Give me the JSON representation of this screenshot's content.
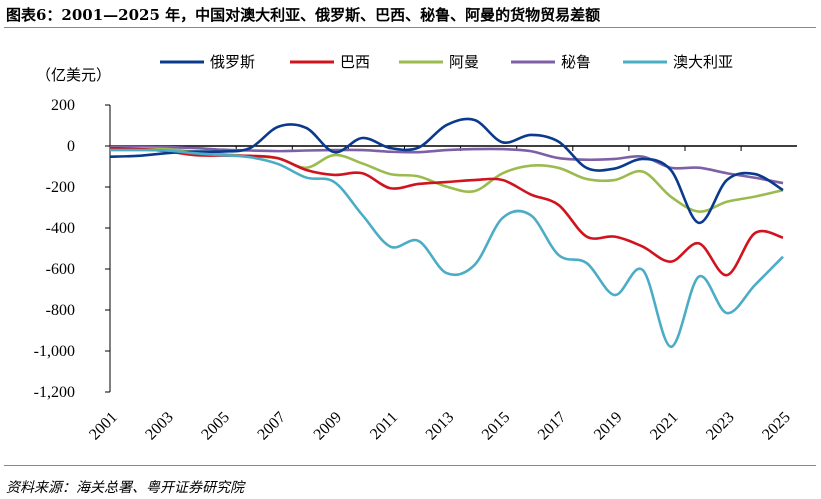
{
  "title": "图表6：2001—2025 年，中国对澳大利亚、俄罗斯、巴西、秘鲁、阿曼的货物贸易差额",
  "source": "资料来源：海关总署、粤开证券研究院",
  "chart_data": {
    "type": "line",
    "title": "图表6：2001—2025 年，中国对澳大利亚、俄罗斯、巴西、秘鲁、阿曼的货物贸易差额",
    "ylabel": "（亿美元）",
    "xlabel": "",
    "ylim": [
      -1200,
      200
    ],
    "yticks": [
      "200",
      "0",
      "-200",
      "-400",
      "-600",
      "-800",
      "-1,000",
      "-1,200"
    ],
    "xtick_labels": [
      "2001",
      "2003",
      "2005",
      "2007",
      "2009",
      "2011",
      "2013",
      "2015",
      "2017",
      "2019",
      "2021",
      "2023",
      "2025"
    ],
    "legend_position": "top",
    "grid": false,
    "x": [
      2001,
      2002,
      2003,
      2004,
      2005,
      2006,
      2007,
      2008,
      2009,
      2010,
      2011,
      2012,
      2013,
      2014,
      2015,
      2016,
      2017,
      2018,
      2019,
      2020,
      2021,
      2022,
      2023,
      2024,
      2025
    ],
    "series": [
      {
        "name": "俄罗斯",
        "color": "#0b3a8c",
        "values": [
          -52,
          -48,
          -35,
          -27,
          -27,
          -10,
          94,
          88,
          -30,
          39,
          -10,
          -8,
          102,
          127,
          18,
          54,
          21,
          -107,
          -110,
          -63,
          -117,
          -375,
          -166,
          -137,
          -215
        ]
      },
      {
        "name": "巴西",
        "color": "#d0131e",
        "values": [
          -10,
          -15,
          -25,
          -44,
          -47,
          -48,
          -60,
          -117,
          -141,
          -133,
          -206,
          -185,
          -176,
          -166,
          -166,
          -236,
          -288,
          -442,
          -442,
          -491,
          -564,
          -475,
          -630,
          -425,
          -447
        ]
      },
      {
        "name": "阿曼",
        "color": "#9bbb4f",
        "values": [
          -10,
          -12,
          -15,
          -28,
          -40,
          -50,
          -60,
          -106,
          -44,
          -85,
          -137,
          -148,
          -198,
          -220,
          -133,
          -96,
          -107,
          -161,
          -166,
          -125,
          -247,
          -320,
          -272,
          -247,
          -215
        ]
      },
      {
        "name": "秘鲁",
        "color": "#7d60a6",
        "values": [
          -5,
          -5,
          -6,
          -10,
          -18,
          -22,
          -25,
          -22,
          -20,
          -20,
          -28,
          -30,
          -20,
          -15,
          -15,
          -25,
          -59,
          -67,
          -63,
          -52,
          -106,
          -106,
          -133,
          -155,
          -181
        ]
      },
      {
        "name": "澳大利亚",
        "color": "#4bacc6",
        "values": [
          -20,
          -20,
          -22,
          -35,
          -45,
          -55,
          -88,
          -154,
          -176,
          -337,
          -491,
          -463,
          -620,
          -580,
          -351,
          -337,
          -532,
          -571,
          -727,
          -605,
          -979,
          -637,
          -815,
          -678,
          -540
        ]
      }
    ]
  }
}
